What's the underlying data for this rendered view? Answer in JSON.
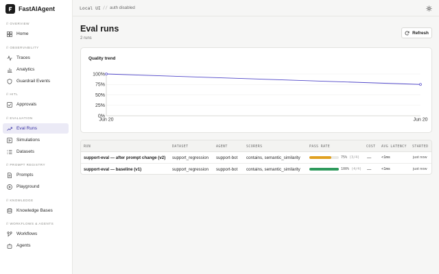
{
  "brand": {
    "name": "FastAIAgent"
  },
  "topbar": {
    "local": "Local UI",
    "separator": "//",
    "auth": "auth disabled"
  },
  "sidebar": {
    "sections": [
      {
        "title": "// OVERVIEW",
        "items": [
          {
            "label": "Home",
            "icon": "grid-icon"
          }
        ]
      },
      {
        "title": "// OBSERVABILITY",
        "items": [
          {
            "label": "Traces",
            "icon": "activity-icon"
          },
          {
            "label": "Analytics",
            "icon": "bar-chart-icon"
          },
          {
            "label": "Guardrail Events",
            "icon": "shield-icon"
          }
        ]
      },
      {
        "title": "// HITL",
        "items": [
          {
            "label": "Approvals",
            "icon": "check-square-icon"
          }
        ]
      },
      {
        "title": "// EVALUATION",
        "items": [
          {
            "label": "Eval Runs",
            "icon": "trending-up-icon",
            "active": true
          },
          {
            "label": "Simulations",
            "icon": "play-square-icon"
          },
          {
            "label": "Datasets",
            "icon": "list-icon"
          }
        ]
      },
      {
        "title": "// PROMPT REGISTRY",
        "items": [
          {
            "label": "Prompts",
            "icon": "document-icon"
          },
          {
            "label": "Playground",
            "icon": "play-circle-icon"
          }
        ]
      },
      {
        "title": "// KNOWLEDGE",
        "items": [
          {
            "label": "Knowledge Bases",
            "icon": "database-icon"
          }
        ]
      },
      {
        "title": "// WORKFLOWS & AGENTS",
        "items": [
          {
            "label": "Workflows",
            "icon": "workflow-icon"
          },
          {
            "label": "Agents",
            "icon": "bot-icon"
          }
        ]
      }
    ]
  },
  "page": {
    "title": "Eval runs",
    "subtitle": "2 runs",
    "refresh_label": "Refresh"
  },
  "chart_data": {
    "type": "line",
    "title": "Quality trend",
    "x": [
      "Jun 20",
      "Jun 20"
    ],
    "series": [
      {
        "values": [
          100,
          75
        ]
      }
    ],
    "y_ticks": [
      "100%",
      "75%",
      "50%",
      "25%",
      "0%"
    ],
    "ylim": [
      0,
      100
    ],
    "grid": true,
    "line_color": "#4f46c8"
  },
  "table": {
    "columns": [
      "RUN",
      "DATASET",
      "AGENT",
      "SCORERS",
      "PASS RATE",
      "COST",
      "AVG LATENCY",
      "STARTED"
    ],
    "rows": [
      {
        "run": "support-eval — after prompt change (v2)",
        "dataset": "support_regression",
        "agent": "support-bot",
        "scorers": "contains, semantic_similarity",
        "pass_pct": 75,
        "pass_label": "75%",
        "pass_count": "(3/4)",
        "bar_color": "#e0a020",
        "cost": "—",
        "latency": "<1ms",
        "started": "just now"
      },
      {
        "run": "support-eval — baseline (v1)",
        "dataset": "support_regression",
        "agent": "support-bot",
        "scorers": "contains, semantic_similarity",
        "pass_pct": 100,
        "pass_label": "100%",
        "pass_count": "(4/4)",
        "bar_color": "#2e9a5c",
        "cost": "—",
        "latency": "<1ms",
        "started": "just now"
      }
    ]
  }
}
